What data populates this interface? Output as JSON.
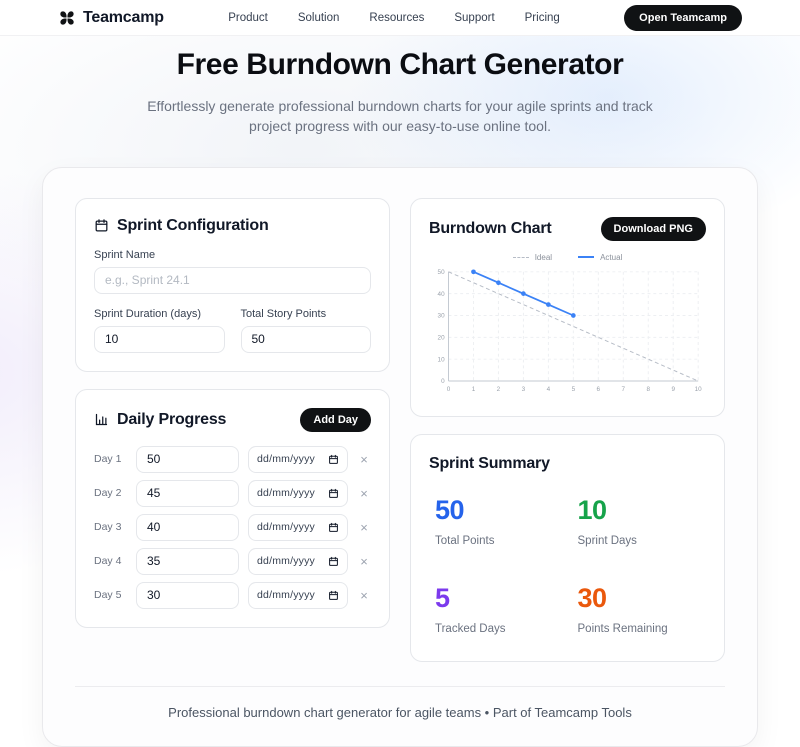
{
  "header": {
    "brand": "Teamcamp",
    "nav": [
      "Product",
      "Solution",
      "Resources",
      "Support",
      "Pricing"
    ],
    "cta": "Open Teamcamp"
  },
  "hero": {
    "title": "Free Burndown Chart Generator",
    "subtitle": "Effortlessly generate professional burndown charts for your agile sprints and track project progress with our easy-to-use online tool."
  },
  "sprint_config": {
    "title": "Sprint Configuration",
    "sprint_name": {
      "label": "Sprint Name",
      "placeholder": "e.g., Sprint 24.1",
      "value": ""
    },
    "duration": {
      "label": "Sprint Duration (days)",
      "value": "10"
    },
    "points": {
      "label": "Total Story Points",
      "value": "50"
    }
  },
  "daily_progress": {
    "title": "Daily Progress",
    "add_button": "Add Day",
    "date_placeholder": "dd/mm/yyyy",
    "remove_label": "×",
    "rows": [
      {
        "label": "Day 1",
        "value": "50"
      },
      {
        "label": "Day 2",
        "value": "45"
      },
      {
        "label": "Day 3",
        "value": "40"
      },
      {
        "label": "Day 4",
        "value": "35"
      },
      {
        "label": "Day 5",
        "value": "30"
      }
    ]
  },
  "chart_panel": {
    "title": "Burndown Chart",
    "download_button": "Download PNG"
  },
  "chart_data": {
    "type": "line",
    "title": "",
    "xlabel": "",
    "ylabel": "",
    "xlim": [
      0,
      10
    ],
    "ylim": [
      0,
      50
    ],
    "x_ticks": [
      0,
      1,
      2,
      3,
      4,
      5,
      6,
      7,
      8,
      9,
      10
    ],
    "y_ticks": [
      0,
      10,
      20,
      30,
      40,
      50
    ],
    "grid": true,
    "legend_position": "top",
    "series": [
      {
        "name": "Ideal",
        "style": "dashed",
        "color": "#b6bcc6",
        "x": [
          0,
          10
        ],
        "values": [
          50,
          0
        ]
      },
      {
        "name": "Actual",
        "style": "solid",
        "color": "#3b82f6",
        "x": [
          1,
          2,
          3,
          4,
          5
        ],
        "values": [
          50,
          45,
          40,
          35,
          30
        ]
      }
    ]
  },
  "summary": {
    "title": "Sprint Summary",
    "stats": [
      {
        "value": "50",
        "label": "Total Points",
        "color": "#2563eb"
      },
      {
        "value": "10",
        "label": "Sprint Days",
        "color": "#16a34a"
      },
      {
        "value": "5",
        "label": "Tracked Days",
        "color": "#7c3aed"
      },
      {
        "value": "30",
        "label": "Points Remaining",
        "color": "#ea580c"
      }
    ]
  },
  "footer": {
    "text": "Professional burndown chart generator for agile teams • Part of Teamcamp Tools"
  }
}
